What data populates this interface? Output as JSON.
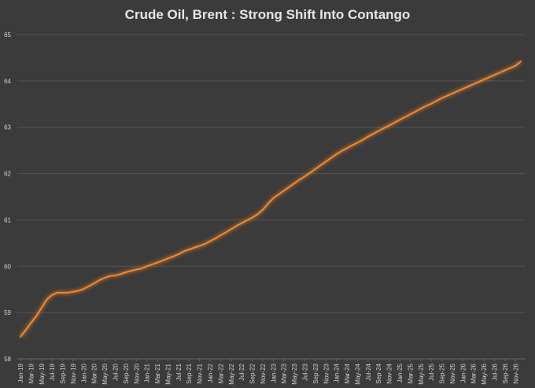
{
  "chart_data": {
    "type": "line",
    "title": "Crude Oil, Brent : Strong Shift Into Contango",
    "xlabel": "",
    "ylabel": "",
    "ylim": [
      58,
      65
    ],
    "yticks": [
      "58",
      "59",
      "60",
      "61",
      "62",
      "63",
      "64",
      "65"
    ],
    "grid": true,
    "legend": "none",
    "colors": {
      "background": "#3b3b3b",
      "line": "#f08a30",
      "glow": "#d9782a",
      "grid": "#555555",
      "text": "#d0d0d0"
    },
    "x_tick_labels": [
      "Jan-19",
      "Mar-19",
      "May-19",
      "Jul-19",
      "Sep-19",
      "Nov-19",
      "Jan-20",
      "Mar-20",
      "May-20",
      "Jul-20",
      "Sep-20",
      "Nov-20",
      "Jan-21",
      "Mar-21",
      "May-21",
      "Jul-21",
      "Sep-21",
      "Nov-21",
      "Jan-22",
      "Mar-22",
      "May-22",
      "Jul-22",
      "Sep-22",
      "Nov-22",
      "Jan-23",
      "Mar-23",
      "May-23",
      "Jul-23",
      "Sep-23",
      "Nov-23",
      "Jan-24",
      "Mar-24",
      "May-24",
      "Jul-24",
      "Sep-24",
      "Nov-24",
      "Jan-25",
      "Mar-25",
      "May-25",
      "Jul-25",
      "Sep-25",
      "Nov-25",
      "Jan-26",
      "Mar-26",
      "May-26",
      "Jul-26",
      "Sep-26",
      "Nov-26"
    ],
    "series": [
      {
        "name": "",
        "x": [
          "Jan-19",
          "Feb-19",
          "Mar-19",
          "Apr-19",
          "May-19",
          "Jun-19",
          "Jul-19",
          "Aug-19",
          "Sep-19",
          "Oct-19",
          "Nov-19",
          "Dec-19",
          "Jan-20",
          "Feb-20",
          "Mar-20",
          "Apr-20",
          "May-20",
          "Jun-20",
          "Jul-20",
          "Aug-20",
          "Sep-20",
          "Oct-20",
          "Nov-20",
          "Dec-20",
          "Jan-21",
          "Feb-21",
          "Mar-21",
          "Apr-21",
          "May-21",
          "Jun-21",
          "Jul-21",
          "Aug-21",
          "Sep-21",
          "Oct-21",
          "Nov-21",
          "Dec-21",
          "Jan-22",
          "Feb-22",
          "Mar-22",
          "Apr-22",
          "May-22",
          "Jun-22",
          "Jul-22",
          "Aug-22",
          "Sep-22",
          "Oct-22",
          "Nov-22",
          "Dec-22",
          "Jan-23",
          "Feb-23",
          "Mar-23",
          "Apr-23",
          "May-23",
          "Jun-23",
          "Jul-23",
          "Aug-23",
          "Sep-23",
          "Oct-23",
          "Nov-23",
          "Dec-23",
          "Jan-24",
          "Feb-24",
          "Mar-24",
          "Apr-24",
          "May-24",
          "Jun-24",
          "Jul-24",
          "Aug-24",
          "Sep-24",
          "Oct-24",
          "Nov-24",
          "Dec-24",
          "Jan-25",
          "Feb-25",
          "Mar-25",
          "Apr-25",
          "May-25",
          "Jun-25",
          "Jul-25",
          "Aug-25",
          "Sep-25",
          "Oct-25",
          "Nov-25",
          "Dec-25",
          "Jan-26",
          "Feb-26",
          "Mar-26",
          "Apr-26",
          "May-26",
          "Jun-26",
          "Jul-26",
          "Aug-26",
          "Sep-26",
          "Oct-26",
          "Nov-26",
          "Dec-26"
        ],
        "values": [
          58.48,
          58.62,
          58.78,
          58.92,
          59.1,
          59.28,
          59.38,
          59.43,
          59.43,
          59.43,
          59.45,
          59.47,
          59.51,
          59.57,
          59.63,
          59.7,
          59.75,
          59.79,
          59.8,
          59.83,
          59.87,
          59.9,
          59.93,
          59.95,
          60.0,
          60.04,
          60.08,
          60.12,
          60.17,
          60.21,
          60.26,
          60.32,
          60.36,
          60.4,
          60.44,
          60.48,
          60.54,
          60.6,
          60.67,
          60.73,
          60.8,
          60.87,
          60.93,
          60.99,
          61.05,
          61.12,
          61.22,
          61.35,
          61.47,
          61.55,
          61.63,
          61.71,
          61.79,
          61.87,
          61.94,
          62.02,
          62.1,
          62.18,
          62.26,
          62.34,
          62.42,
          62.49,
          62.55,
          62.61,
          62.67,
          62.73,
          62.8,
          62.86,
          62.92,
          62.98,
          63.04,
          63.1,
          63.16,
          63.22,
          63.28,
          63.34,
          63.4,
          63.46,
          63.51,
          63.57,
          63.63,
          63.68,
          63.73,
          63.78,
          63.83,
          63.88,
          63.93,
          63.98,
          64.03,
          64.08,
          64.13,
          64.18,
          64.23,
          64.28,
          64.33,
          64.42
        ]
      }
    ]
  }
}
